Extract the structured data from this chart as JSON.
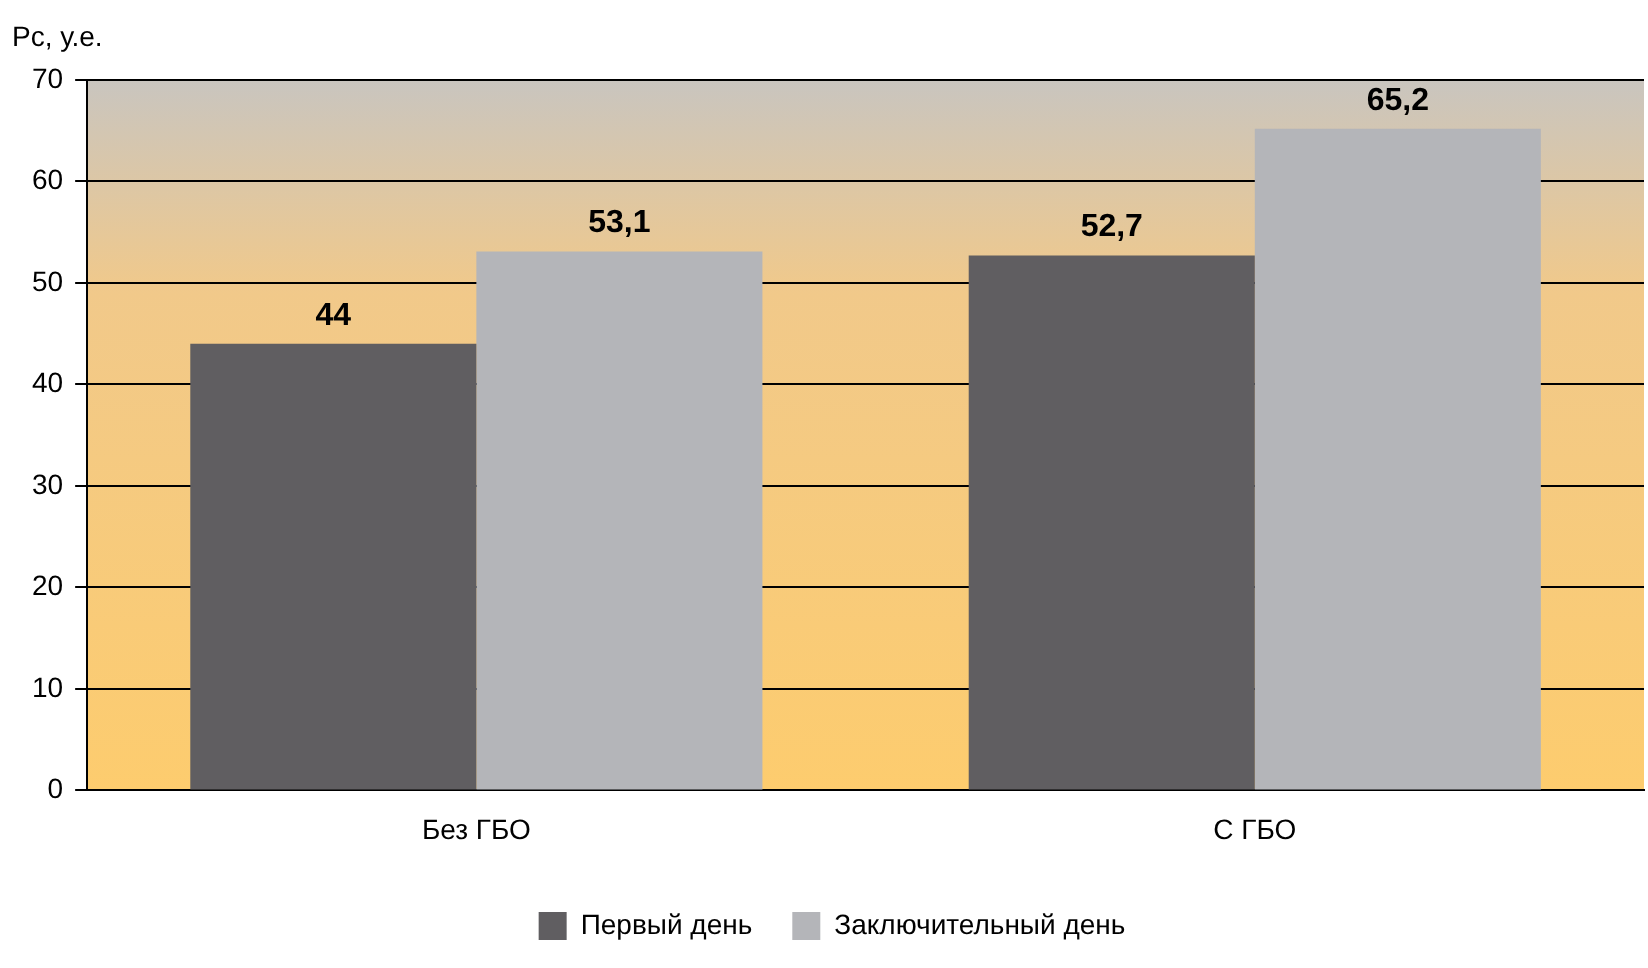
{
  "chart_data": {
    "type": "bar",
    "ylabel": "Рс, у.е.",
    "categories": [
      "Без ГБО",
      "С ГБО"
    ],
    "series": [
      {
        "name": "Первый день",
        "color": "#605e61",
        "values": [
          44,
          52.7
        ],
        "value_labels": [
          "44",
          "52,7"
        ]
      },
      {
        "name": "Заключительный день",
        "color": "#b4b5b9",
        "values": [
          53.1,
          65.2
        ],
        "value_labels": [
          "53,1",
          "65,2"
        ]
      }
    ],
    "ylim": [
      0,
      70
    ],
    "yticks": [
      0,
      10,
      20,
      30,
      40,
      50,
      60,
      70
    ],
    "grid": "y",
    "legend": "bottom"
  }
}
